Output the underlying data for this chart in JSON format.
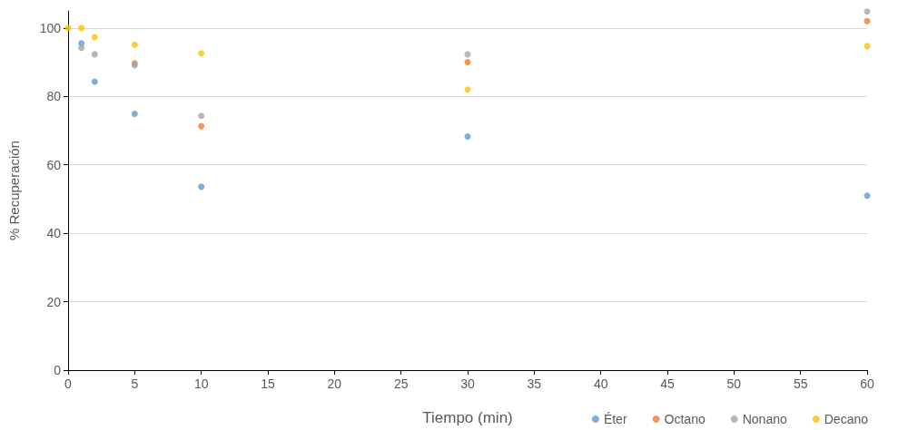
{
  "chart_data": {
    "type": "scatter",
    "xlabel": "Tiempo (min)",
    "ylabel": "% Recuperación",
    "x": [
      0,
      1,
      2,
      5,
      10,
      30,
      60
    ],
    "series": [
      {
        "name": "Éter",
        "color": "#5b9bd5",
        "values": [
          null,
          95.5,
          84.3,
          74.9,
          53.6,
          68.3,
          51.0
        ]
      },
      {
        "name": "Octano",
        "color": "#ed7d31",
        "values": [
          null,
          null,
          null,
          89.7,
          71.3,
          90.0,
          102.0
        ]
      },
      {
        "name": "Nonano",
        "color": "#a5a5a5",
        "values": [
          null,
          94.2,
          92.3,
          89.1,
          74.3,
          92.3,
          104.8
        ]
      },
      {
        "name": "Decano",
        "color": "#ffc000",
        "values": [
          100,
          100,
          97.3,
          95.1,
          92.6,
          82.0,
          94.7
        ]
      }
    ],
    "xlim": [
      0,
      60
    ],
    "xticks": [
      0,
      5,
      10,
      15,
      20,
      25,
      30,
      35,
      40,
      45,
      50,
      55,
      60
    ],
    "ylim": [
      0,
      105
    ],
    "yticks": [
      0,
      20,
      40,
      60,
      80,
      100
    ],
    "grid": "y",
    "legend": "bottom right",
    "marker": "circle"
  }
}
